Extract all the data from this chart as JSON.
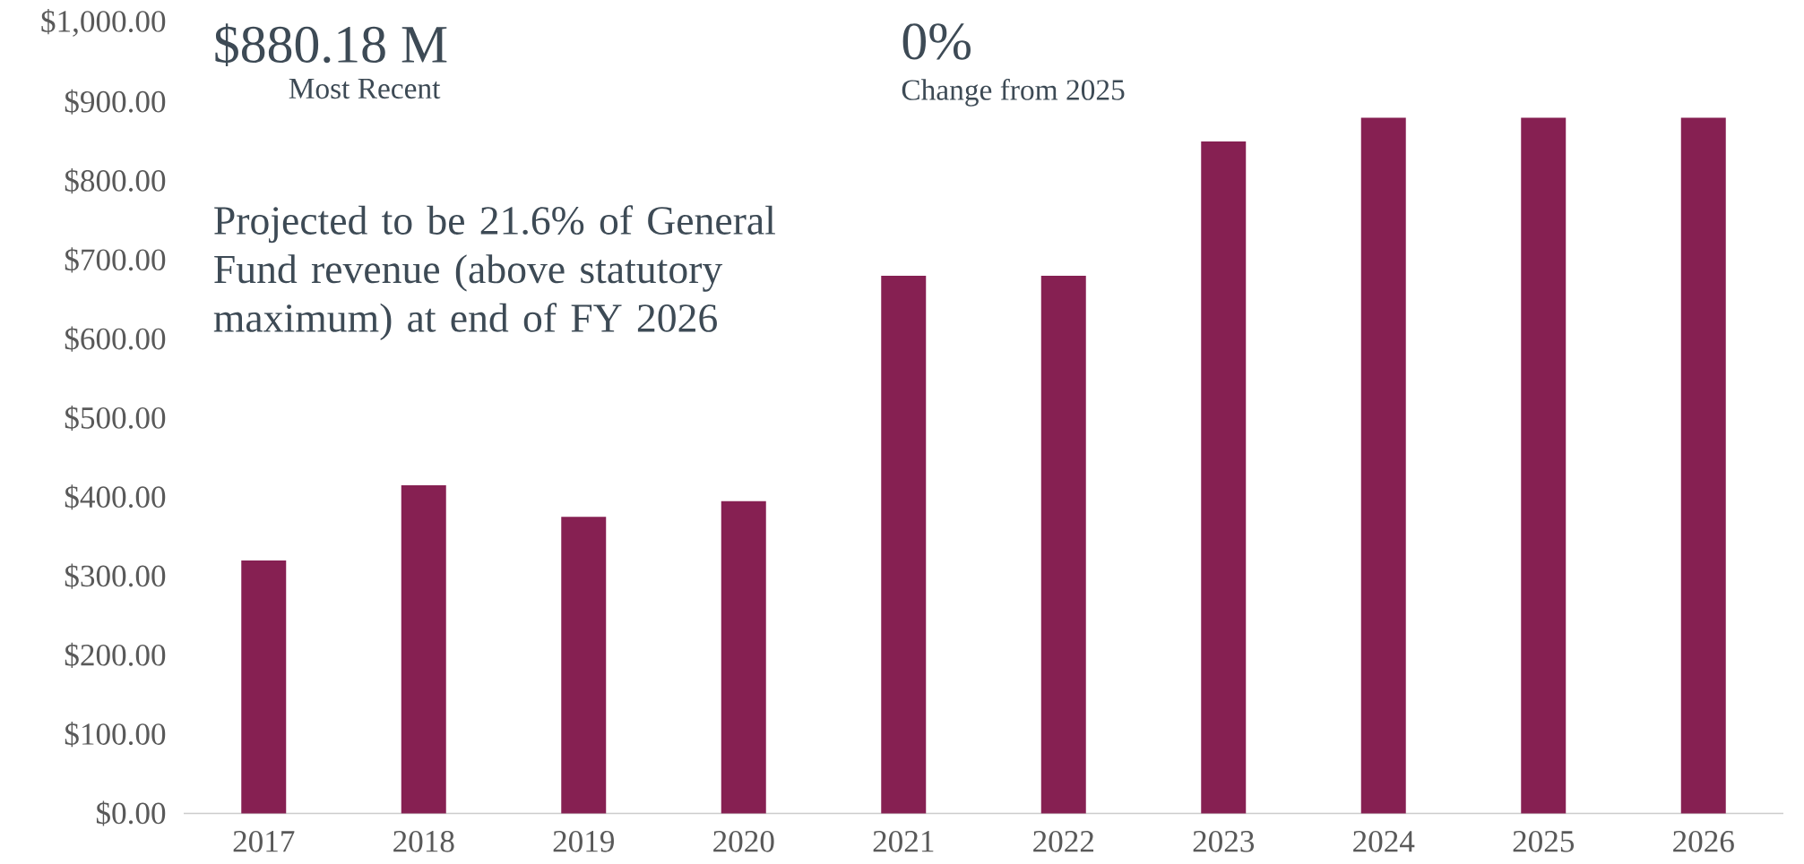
{
  "chart_data": {
    "type": "bar",
    "categories": [
      "2017",
      "2018",
      "2019",
      "2020",
      "2021",
      "2022",
      "2023",
      "2024",
      "2025",
      "2026"
    ],
    "values": [
      320,
      415,
      375,
      395,
      680,
      680,
      850,
      880,
      880,
      880
    ],
    "color": "#862052",
    "ylim": [
      0,
      1000
    ],
    "yticks": [
      {
        "value": 0,
        "label": "$0.00"
      },
      {
        "value": 100,
        "label": "$100.00"
      },
      {
        "value": 200,
        "label": "$200.00"
      },
      {
        "value": 300,
        "label": "$300.00"
      },
      {
        "value": 400,
        "label": "$400.00"
      },
      {
        "value": 500,
        "label": "$500.00"
      },
      {
        "value": 600,
        "label": "$600.00"
      },
      {
        "value": 700,
        "label": "$700.00"
      },
      {
        "value": 800,
        "label": "$800.00"
      },
      {
        "value": 900,
        "label": "$900.00"
      },
      {
        "value": 1000,
        "label": "$1,000.00"
      }
    ],
    "annotations": [
      "$880.18 M",
      "Most Recent",
      "0%",
      "Change from 2025",
      "Projected to be 21.6% of General Fund revenue (above statutory maximum) at end of FY 2026"
    ]
  }
}
